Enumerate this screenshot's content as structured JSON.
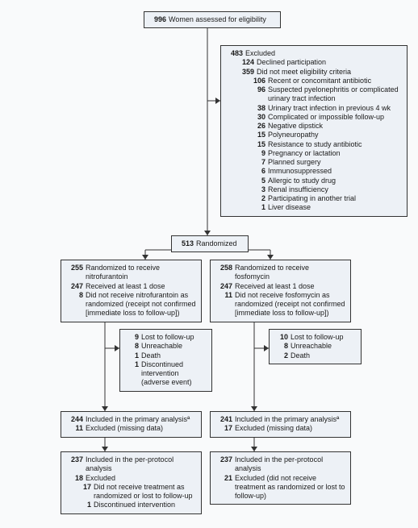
{
  "colors": {
    "box_fill": "#edf1f6",
    "box_border": "#333333",
    "bg": "#f9fafb",
    "text": "#1a1a1a"
  },
  "typography": {
    "font_family": "Segoe UI, Arial, sans-serif",
    "font_size": 9,
    "num_weight": "bold"
  },
  "eligibility": {
    "n": "996",
    "label": "Women assessed for eligibility"
  },
  "excluded": {
    "n": "483",
    "label": "Excluded",
    "declined_n": "124",
    "declined": "Declined participation",
    "notmeet_n": "359",
    "notmeet": "Did not meet eligibility criteria",
    "reasons": [
      {
        "n": "106",
        "t": "Recent or concomitant antibiotic"
      },
      {
        "n": "96",
        "t": "Suspected pyelonephritis or complicated urinary tract infection"
      },
      {
        "n": "38",
        "t": "Urinary tract infection in previous 4 wk"
      },
      {
        "n": "30",
        "t": "Complicated or impossible follow-up"
      },
      {
        "n": "26",
        "t": "Negative dipstick"
      },
      {
        "n": "15",
        "t": "Polyneuropathy"
      },
      {
        "n": "15",
        "t": "Resistance to study antibiotic"
      },
      {
        "n": "9",
        "t": "Pregnancy or lactation"
      },
      {
        "n": "7",
        "t": "Planned surgery"
      },
      {
        "n": "6",
        "t": "Immunosuppressed"
      },
      {
        "n": "5",
        "t": "Allergic to study drug"
      },
      {
        "n": "3",
        "t": "Renal insufficiency"
      },
      {
        "n": "2",
        "t": "Participating in another trial"
      },
      {
        "n": "1",
        "t": "Liver disease"
      }
    ]
  },
  "randomized": {
    "n": "513",
    "label": "Randomized"
  },
  "left": {
    "alloc": {
      "n": "255",
      "t": "Randomized to receive nitrofurantoin",
      "recv_n": "247",
      "recv": "Received at least 1 dose",
      "not_n": "8",
      "not": "Did not receive nitrofurantoin as randomized (receipt not confirmed [immediate loss to follow-up])"
    },
    "fu": {
      "lost_n": "9",
      "lost": "Lost to follow-up",
      "un_n": "8",
      "un": "Unreachable",
      "d_n": "1",
      "d": "Death",
      "disc_n": "1",
      "disc": "Discontinued intervention (adverse event)"
    },
    "primary": {
      "inc_n": "244",
      "inc": "Included in the primary analysisª",
      "ex_n": "11",
      "ex": "Excluded (missing data)"
    },
    "pp": {
      "inc_n": "237",
      "inc": "Included in the per-protocol analysis",
      "ex_n": "18",
      "ex": "Excluded",
      "r1_n": "17",
      "r1": "Did not receive treatment as randomized or lost to follow-up",
      "r2_n": "1",
      "r2": "Discontinued intervention"
    }
  },
  "right": {
    "alloc": {
      "n": "258",
      "t": "Randomized to receive fosfomycin",
      "recv_n": "247",
      "recv": "Received at least 1 dose",
      "not_n": "11",
      "not": "Did not receive fosfomycin as randomized (receipt not confirmed [immediate loss to follow-up])"
    },
    "fu": {
      "lost_n": "10",
      "lost": "Lost to follow-up",
      "un_n": "8",
      "un": "Unreachable",
      "d_n": "2",
      "d": "Death"
    },
    "primary": {
      "inc_n": "241",
      "inc": "Included in the primary analysisª",
      "ex_n": "17",
      "ex": "Excluded (missing data)"
    },
    "pp": {
      "inc_n": "237",
      "inc": "Included in the per-protocol analysis",
      "ex_n": "21",
      "ex": "Excluded (did not receive treatment as randomized or lost to follow-up)"
    }
  }
}
